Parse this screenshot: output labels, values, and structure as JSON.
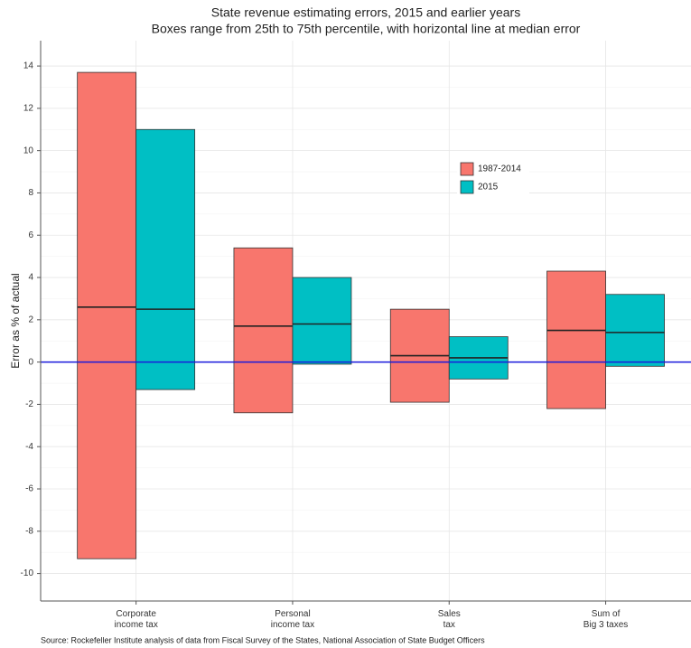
{
  "chart_data": {
    "type": "box",
    "title": "State revenue estimating errors, 2015 and earlier years",
    "subtitle": "Boxes range from 25th to 75th percentile, with horizontal line at median error",
    "y_label": "Error as % of actual",
    "source": "Source: Rockefeller Institute analysis of data from Fiscal Survey of the States, National Association of State Budget Officers",
    "categories": [
      "Corporate\nincome tax",
      "Personal\nincome tax",
      "Sales\ntax",
      "Sum of\nBig 3 taxes"
    ],
    "series": [
      {
        "name": "1987-2014",
        "color": "#f8766d",
        "q1": [
          -9.3,
          -2.4,
          -1.9,
          -2.2
        ],
        "median": [
          2.6,
          1.7,
          0.3,
          1.5
        ],
        "q3": [
          13.7,
          5.4,
          2.5,
          4.3
        ]
      },
      {
        "name": "2015",
        "color": "#00bfc4",
        "q1": [
          -1.3,
          -0.1,
          -0.8,
          -0.2
        ],
        "median": [
          2.5,
          1.8,
          0.2,
          1.4
        ],
        "q3": [
          11.0,
          4.0,
          1.2,
          3.2
        ]
      }
    ],
    "reference_line": {
      "value": 0,
      "color": "#1a1adb"
    },
    "ylim": [
      -11.3,
      15.2
    ],
    "yticks": [
      -10,
      -8,
      -6,
      -4,
      -2,
      0,
      2,
      4,
      6,
      8,
      10,
      12,
      14
    ],
    "grid": true,
    "legend_position": "inside"
  }
}
